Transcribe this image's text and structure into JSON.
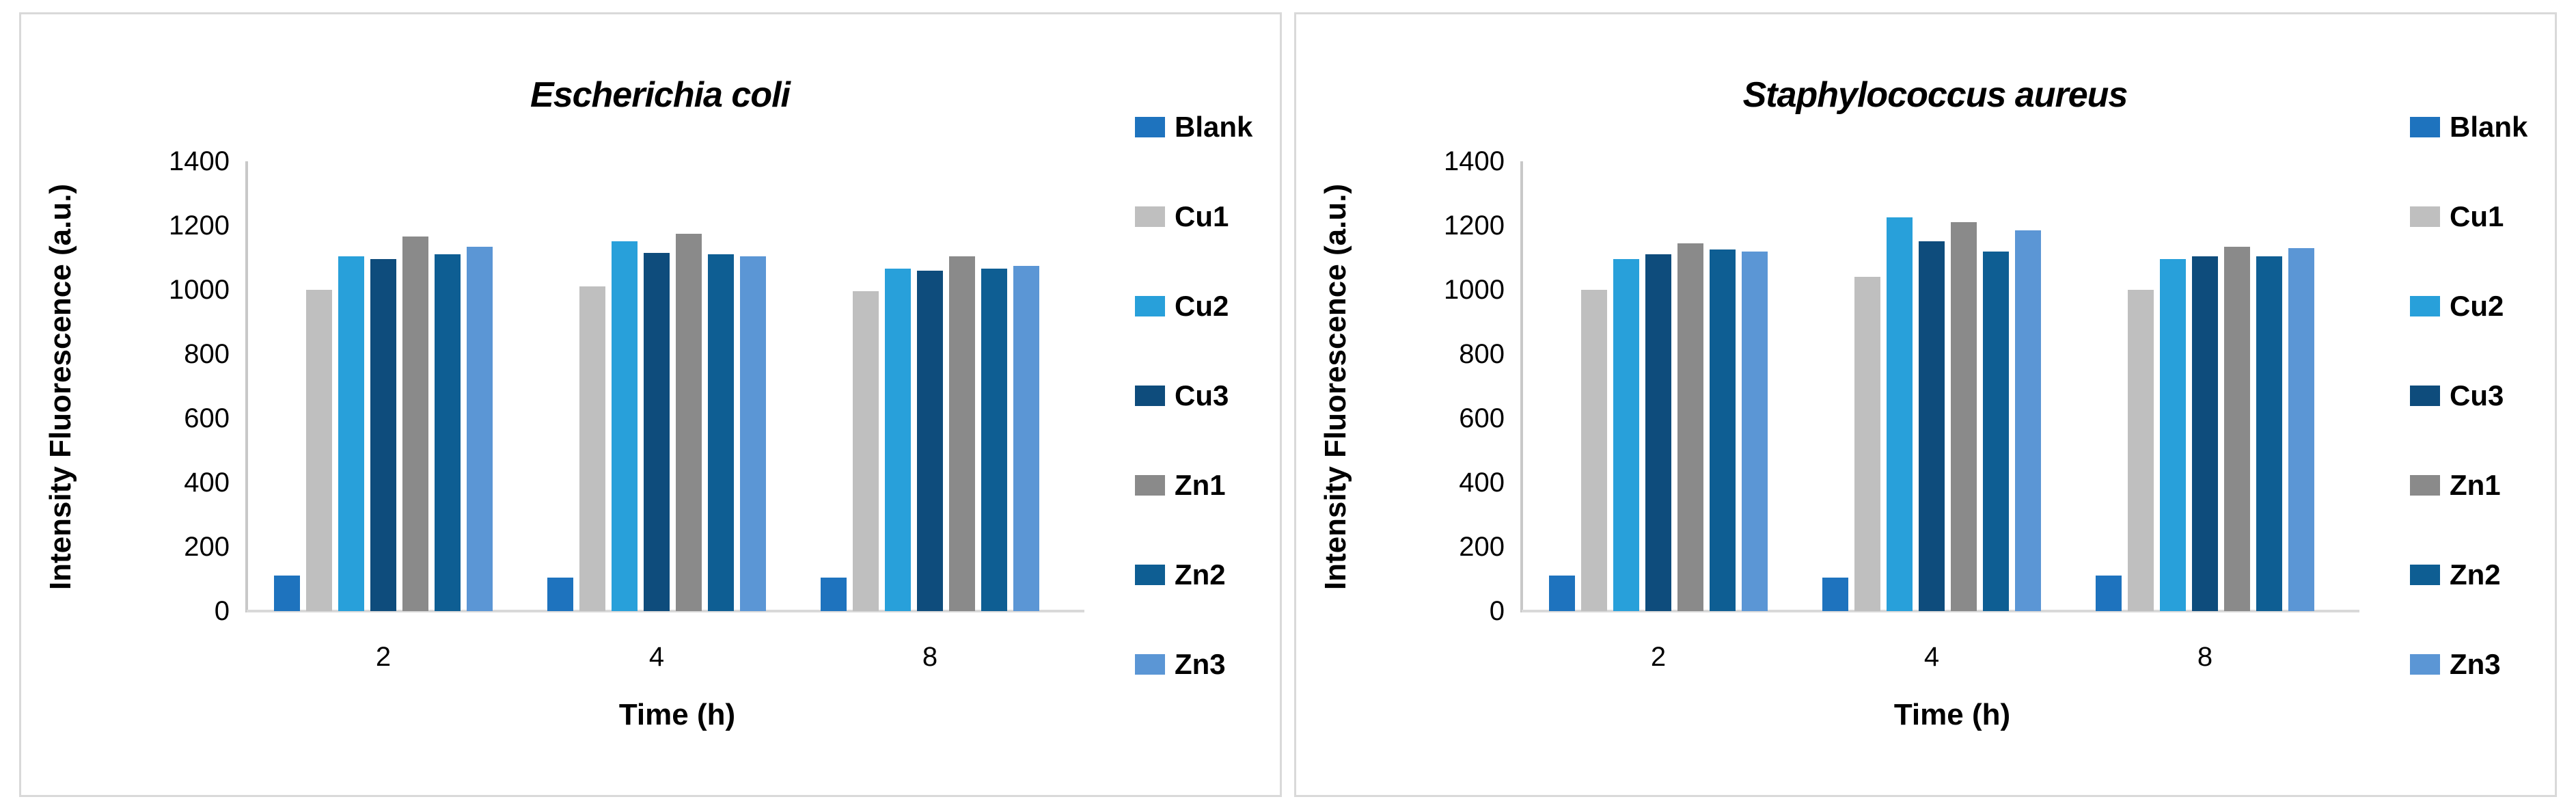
{
  "figure": {
    "panel_border_color": "#D9D9D9",
    "background_color": "#FFFFFF"
  },
  "chart_data": [
    {
      "type": "bar",
      "title": "Escherichia coli",
      "title_style": "bold-italic",
      "xlabel": "Time (h)",
      "ylabel": "Intensity Fluorescence (a.u.)",
      "categories": [
        "2",
        "4",
        "8"
      ],
      "ylim": [
        0,
        1400
      ],
      "yticks": [
        0,
        200,
        400,
        600,
        800,
        1000,
        1200,
        1400
      ],
      "grid": false,
      "legend_position": "right",
      "series": [
        {
          "name": "Blank",
          "color": "#1E73BE",
          "values": [
            110,
            105,
            105
          ]
        },
        {
          "name": "Cu1",
          "color": "#BFBFBF",
          "values": [
            1000,
            1010,
            995
          ]
        },
        {
          "name": "Cu2",
          "color": "#28A0DA",
          "values": [
            1105,
            1150,
            1065
          ]
        },
        {
          "name": "Cu3",
          "color": "#0E4C7C",
          "values": [
            1095,
            1115,
            1060
          ]
        },
        {
          "name": "Zn1",
          "color": "#8A8A8A",
          "values": [
            1165,
            1175,
            1105
          ]
        },
        {
          "name": "Zn2",
          "color": "#0E5E93",
          "values": [
            1110,
            1110,
            1065
          ]
        },
        {
          "name": "Zn3",
          "color": "#5B96D5",
          "values": [
            1135,
            1105,
            1075
          ]
        }
      ]
    },
    {
      "type": "bar",
      "title": "Staphylococcus aureus",
      "title_style": "bold-italic",
      "xlabel": "Time (h)",
      "ylabel": "Intensity Fluorescence (a.u.)",
      "categories": [
        "2",
        "4",
        "8"
      ],
      "ylim": [
        0,
        1400
      ],
      "yticks": [
        0,
        200,
        400,
        600,
        800,
        1000,
        1200,
        1400
      ],
      "grid": false,
      "legend_position": "right",
      "series": [
        {
          "name": "Blank",
          "color": "#1E73BE",
          "values": [
            110,
            105,
            110
          ]
        },
        {
          "name": "Cu1",
          "color": "#BFBFBF",
          "values": [
            1000,
            1040,
            1000
          ]
        },
        {
          "name": "Cu2",
          "color": "#28A0DA",
          "values": [
            1095,
            1225,
            1095
          ]
        },
        {
          "name": "Cu3",
          "color": "#0E4C7C",
          "values": [
            1110,
            1150,
            1105
          ]
        },
        {
          "name": "Zn1",
          "color": "#8A8A8A",
          "values": [
            1145,
            1210,
            1135
          ]
        },
        {
          "name": "Zn2",
          "color": "#0E5E93",
          "values": [
            1125,
            1120,
            1105
          ]
        },
        {
          "name": "Zn3",
          "color": "#5B96D5",
          "values": [
            1120,
            1185,
            1130
          ]
        }
      ]
    }
  ]
}
